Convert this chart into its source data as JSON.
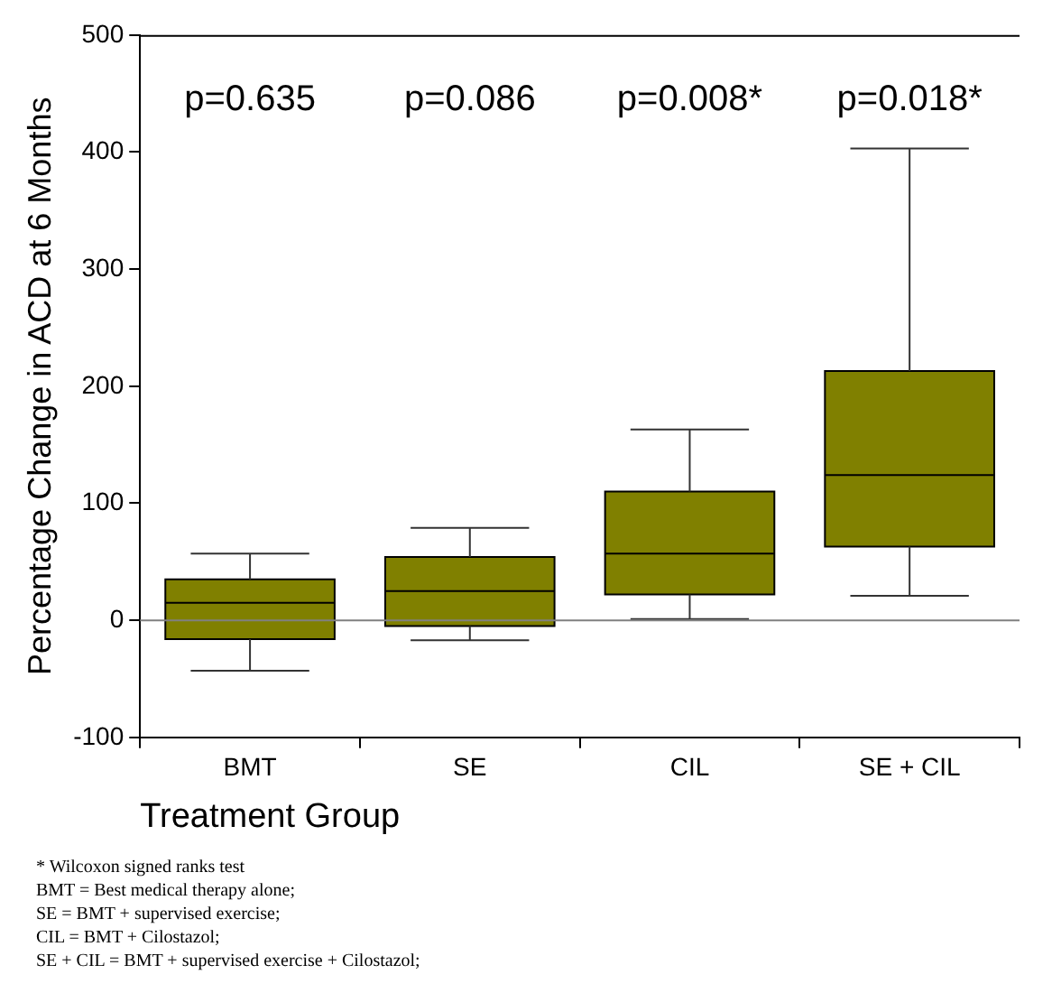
{
  "chart_data": {
    "type": "box",
    "categories": [
      "BMT",
      "SE",
      "CIL",
      "SE + CIL"
    ],
    "boxes": [
      {
        "low": -43,
        "q1": -16,
        "median": 15,
        "q3": 35,
        "high": 57
      },
      {
        "low": -17,
        "q1": -5,
        "median": 25,
        "q3": 54,
        "high": 79
      },
      {
        "low": 1,
        "q1": 22,
        "median": 57,
        "q3": 110,
        "high": 163
      },
      {
        "low": 21,
        "q1": 63,
        "median": 124,
        "q3": 213,
        "high": 403
      }
    ],
    "color": "#808000",
    "xlabel": "Treatment Group",
    "ylabel": "Percentage Change in ACD at 6 Months",
    "ylim": [
      -100,
      500
    ],
    "yticks": [
      -100,
      0,
      100,
      200,
      300,
      400,
      500
    ],
    "ref_lines": [
      {
        "axis": "y",
        "value": 0,
        "color": "#808080"
      }
    ],
    "annotations": [
      "p=0.635",
      "p=0.086",
      "p=0.008*",
      "p=0.018*",
      "* Wilcoxon signed ranks test",
      "BMT = Best medical therapy alone;",
      "SE = BMT + supervised exercise;",
      "CIL = BMT + Cilostazol;",
      "SE + CIL = BMT + supervised exercise + Cilostazol;"
    ]
  }
}
